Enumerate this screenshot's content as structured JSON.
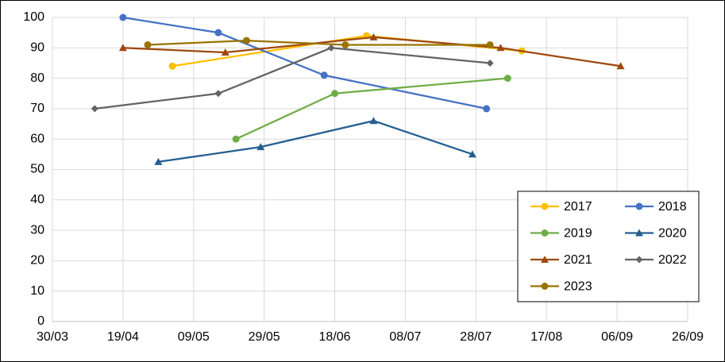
{
  "chart_data": {
    "type": "line",
    "xlim": [
      "30/03",
      "26/09"
    ],
    "xticks": [
      "30/03",
      "19/04",
      "09/05",
      "29/05",
      "18/06",
      "08/07",
      "28/07",
      "17/08",
      "06/09",
      "26/09"
    ],
    "ylim": [
      0,
      100
    ],
    "yticks": [
      0,
      10,
      20,
      30,
      40,
      50,
      60,
      70,
      80,
      90,
      100
    ],
    "grid": true,
    "legend": "lower-right",
    "series": [
      {
        "name": "2017",
        "color": "#ffc000",
        "marker": "circle",
        "x": [
          "03/05",
          "27/06",
          "10/08"
        ],
        "values": [
          84,
          94,
          89
        ]
      },
      {
        "name": "2018",
        "color": "#4472c4",
        "marker": "circle",
        "x": [
          "19/04",
          "16/05",
          "15/06",
          "31/07"
        ],
        "values": [
          100,
          95,
          81,
          70
        ]
      },
      {
        "name": "2019",
        "color": "#70ad47",
        "marker": "circle",
        "x": [
          "21/05",
          "18/06",
          "06/08"
        ],
        "values": [
          60,
          75,
          80
        ]
      },
      {
        "name": "2020",
        "color": "#255e91",
        "marker": "triangle",
        "x": [
          "29/04",
          "28/05",
          "29/06",
          "27/07"
        ],
        "values": [
          52.5,
          57.4,
          66,
          55
        ]
      },
      {
        "name": "2021",
        "color": "#9e480e",
        "marker": "triangle",
        "x": [
          "19/04",
          "18/05",
          "29/06",
          "04/08",
          "07/09"
        ],
        "values": [
          90,
          88.5,
          93.5,
          90,
          84
        ]
      },
      {
        "name": "2022",
        "color": "#636363",
        "marker": "diamond",
        "x": [
          "11/04",
          "16/05",
          "17/06",
          "01/08"
        ],
        "values": [
          70,
          75,
          90,
          85
        ]
      },
      {
        "name": "2023",
        "color": "#997300",
        "marker": "circle",
        "x": [
          "26/04",
          "24/05",
          "21/06",
          "01/08"
        ],
        "values": [
          91,
          92.4,
          91,
          91
        ]
      }
    ]
  }
}
